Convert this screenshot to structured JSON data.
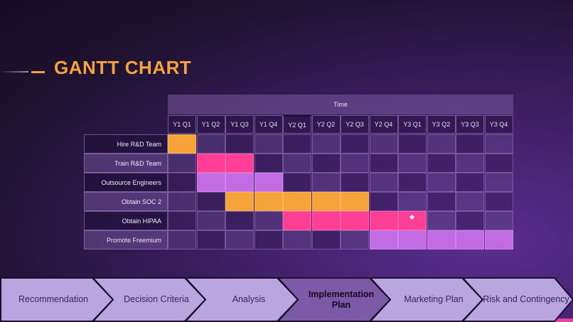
{
  "title": "GANTT CHART",
  "time_header": "Time",
  "quarters": [
    "Y1 Q1",
    "Y1 Q2",
    "Y1 Q3",
    "Y1 Q4",
    "Y2 Q1",
    "Y2 Q2",
    "Y2 Q3",
    "Y2 Q4",
    "Y3 Q1",
    "Y3 Q2",
    "Y3 Q3",
    "Y3 Q4"
  ],
  "tasks": [
    {
      "label": "Hire R&D Team",
      "start": 0,
      "end": 0,
      "color": "#f6a33a"
    },
    {
      "label": "Train R&D Team",
      "start": 1,
      "end": 2,
      "color": "#ff3f96"
    },
    {
      "label": "Outsource Engineers",
      "start": 1,
      "end": 3,
      "color": "#c26be3"
    },
    {
      "label": "Obtain SOC 2",
      "start": 2,
      "end": 6,
      "color": "#f6a33a"
    },
    {
      "label": "Obtain HIPAA",
      "start": 4,
      "end": 8,
      "color": "#ff3f96",
      "milestone": 8
    },
    {
      "label": "Promote Freemium",
      "start": 7,
      "end": 11,
      "color": "#c26be3"
    }
  ],
  "process_steps": [
    {
      "label": "Recommendation",
      "current": false
    },
    {
      "label": "Decision Criteria",
      "current": false
    },
    {
      "label": "Analysis",
      "current": false
    },
    {
      "label": "Implementation Plan",
      "current": true
    },
    {
      "label": "Marketing Plan",
      "current": false
    },
    {
      "label": "Risk and Contingency",
      "current": false
    }
  ],
  "colors": {
    "accent_orange": "#f6a33a",
    "accent_pink": "#ff3f96",
    "accent_violet": "#c26be3",
    "step_fill": "#b9a6e0",
    "step_current_fill": "#7d5aa8"
  }
}
